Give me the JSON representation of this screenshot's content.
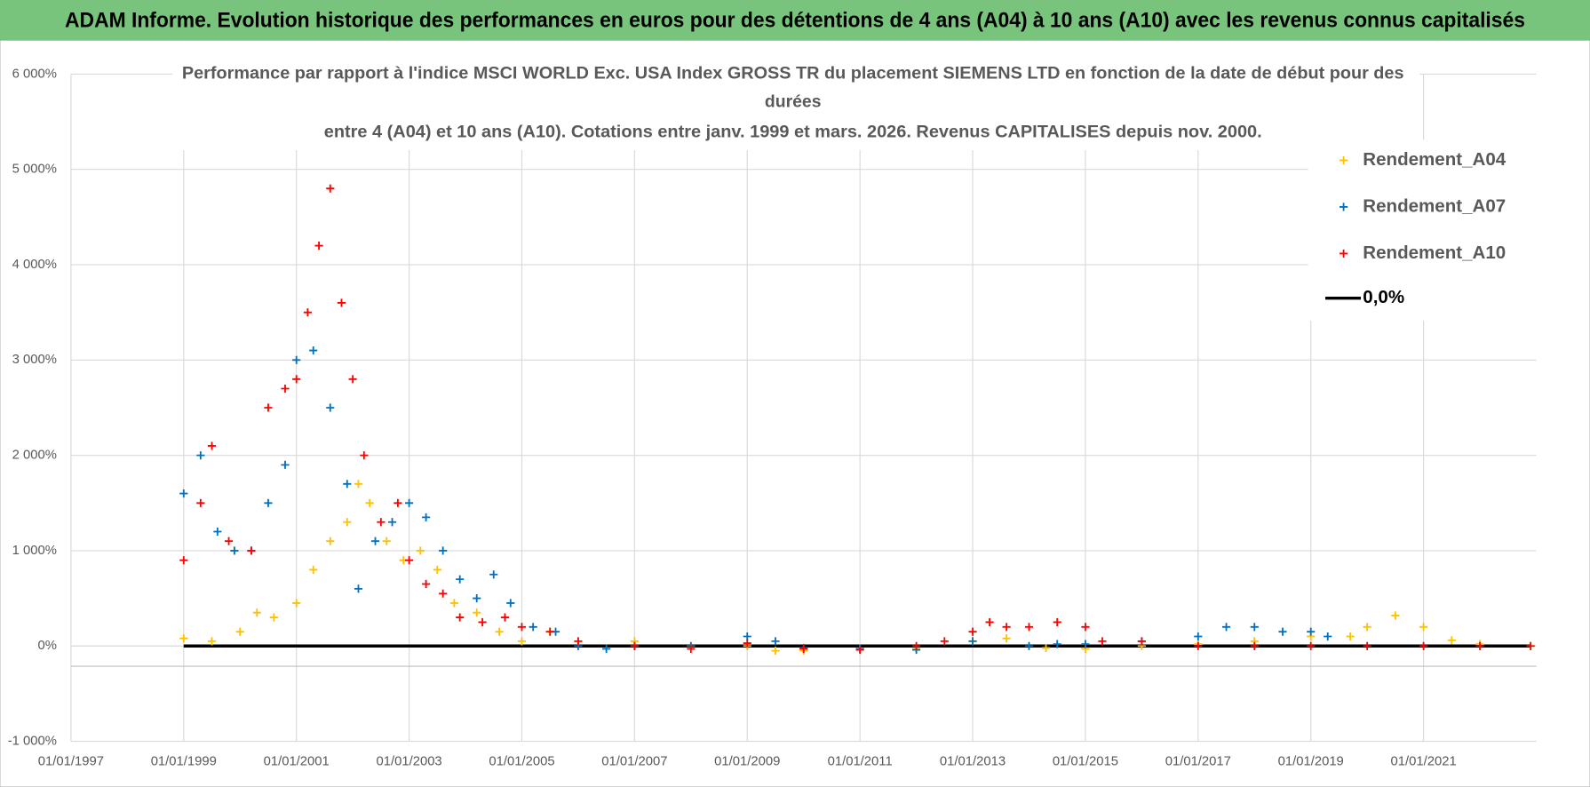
{
  "chart_data": {
    "type": "scatter",
    "header": "ADAM Informe. Evolution historique des performances en euros pour des détentions de 4 ans (A04) à 10 ans (A10) avec les revenus connus capitalisés",
    "title": [
      "Performance par rapport à l'indice MSCI WORLD Exc. USA Index GROSS TR  du placement SIEMENS LTD en fonction de la date de début pour des",
      "durées",
      "entre 4 (A04) et 10 ans (A10).  Cotations entre janv. 1999 et mars. 2026. Revenus CAPITALISES depuis nov. 2000."
    ],
    "xlim": [
      1997,
      2023
    ],
    "xticks": [
      {
        "value": 1997,
        "label": "01/01/1997"
      },
      {
        "value": 1999,
        "label": "01/01/1999"
      },
      {
        "value": 2001,
        "label": "01/01/2001"
      },
      {
        "value": 2003,
        "label": "01/01/2003"
      },
      {
        "value": 2005,
        "label": "01/01/2005"
      },
      {
        "value": 2007,
        "label": "01/01/2007"
      },
      {
        "value": 2009,
        "label": "01/01/2009"
      },
      {
        "value": 2011,
        "label": "01/01/2011"
      },
      {
        "value": 2013,
        "label": "01/01/2013"
      },
      {
        "value": 2015,
        "label": "01/01/2015"
      },
      {
        "value": 2017,
        "label": "01/01/2017"
      },
      {
        "value": 2019,
        "label": "01/01/2019"
      },
      {
        "value": 2021,
        "label": "01/01/2021"
      }
    ],
    "ylim": [
      -1000,
      6000
    ],
    "yticks": [
      {
        "value": -1000,
        "label": "-1 000%"
      },
      {
        "value": 0,
        "label": "0%"
      },
      {
        "value": 1000,
        "label": "1 000%"
      },
      {
        "value": 2000,
        "label": "2 000%"
      },
      {
        "value": 3000,
        "label": "3 000%"
      },
      {
        "value": 4000,
        "label": "4 000%"
      },
      {
        "value": 5000,
        "label": "5 000%"
      },
      {
        "value": 6000,
        "label": "6 000%"
      }
    ],
    "grid": true,
    "legend": "top-right",
    "series": [
      {
        "name": "Rendement_A04",
        "color": "#ffc000",
        "x": [
          1999.0,
          1999.5,
          2000.0,
          2000.3,
          2000.6,
          2001.0,
          2001.3,
          2001.6,
          2001.9,
          2002.1,
          2002.3,
          2002.6,
          2002.9,
          2003.2,
          2003.5,
          2003.8,
          2004.2,
          2004.6,
          2005.0,
          2005.5,
          2006.0,
          2007.0,
          2008.0,
          2009.0,
          2009.5,
          2010.0,
          2011.0,
          2012.0,
          2013.0,
          2013.6,
          2014.3,
          2015.0,
          2016.0,
          2017.0,
          2018.0,
          2019.0,
          2019.7,
          2020.0,
          2020.5,
          2021.0,
          2021.5,
          2022.0,
          2022.9
        ],
        "values": [
          80,
          50,
          150,
          350,
          300,
          450,
          800,
          1100,
          1300,
          1700,
          1500,
          1100,
          900,
          1000,
          800,
          450,
          350,
          150,
          50,
          150,
          50,
          50,
          0,
          0,
          -50,
          -50,
          -30,
          -30,
          50,
          80,
          -20,
          -30,
          0,
          20,
          50,
          100,
          100,
          200,
          320,
          200,
          60,
          20,
          0
        ]
      },
      {
        "name": "Rendement_A07",
        "color": "#0070c0",
        "x": [
          1999.0,
          1999.3,
          1999.6,
          1999.9,
          2000.2,
          2000.5,
          2000.8,
          2001.0,
          2001.3,
          2001.6,
          2001.9,
          2002.1,
          2002.4,
          2002.7,
          2003.0,
          2003.3,
          2003.6,
          2003.9,
          2004.2,
          2004.5,
          2004.8,
          2005.2,
          2005.6,
          2006.0,
          2006.5,
          2007.0,
          2008.0,
          2009.0,
          2009.5,
          2010.0,
          2011.0,
          2012.0,
          2013.0,
          2014.0,
          2014.5,
          2015.0,
          2016.0,
          2017.0,
          2017.5,
          2018.0,
          2018.5,
          2019.0,
          2019.3
        ],
        "values": [
          1600,
          2000,
          1200,
          1000,
          1000,
          1500,
          1900,
          3000,
          3100,
          2500,
          1700,
          600,
          1100,
          1300,
          1500,
          1350,
          1000,
          700,
          500,
          750,
          450,
          200,
          150,
          0,
          -30,
          0,
          0,
          100,
          50,
          -20,
          -30,
          -40,
          50,
          0,
          20,
          20,
          50,
          100,
          200,
          200,
          150,
          150,
          100
        ]
      },
      {
        "name": "Rendement_A10",
        "color": "#ff0000",
        "x": [
          1999.0,
          1999.3,
          1999.5,
          1999.8,
          2000.2,
          2000.5,
          2000.8,
          2001.0,
          2001.2,
          2001.4,
          2001.6,
          2001.8,
          2002.0,
          2002.2,
          2002.5,
          2002.8,
          2003.0,
          2003.3,
          2003.6,
          2003.9,
          2004.3,
          2004.7,
          2005.0,
          2005.5,
          2006.0,
          2007.0,
          2008.0,
          2009.0,
          2010.0,
          2011.0,
          2012.0,
          2012.5,
          2013.0,
          2013.3,
          2013.6,
          2014.0,
          2014.5,
          2015.0,
          2015.3,
          2016.0,
          2017.0,
          2018.0,
          2019.0,
          2020.0,
          2021.0,
          2022.0,
          2022.9
        ],
        "values": [
          900,
          1500,
          2100,
          1100,
          1000,
          2500,
          2700,
          2800,
          3500,
          4200,
          4800,
          3600,
          2800,
          2000,
          1300,
          1500,
          900,
          650,
          550,
          300,
          250,
          300,
          200,
          150,
          50,
          0,
          -30,
          30,
          -30,
          -40,
          0,
          50,
          150,
          250,
          200,
          200,
          250,
          200,
          50,
          50,
          0,
          0,
          0,
          0,
          0,
          0,
          0
        ]
      }
    ],
    "lines": [
      {
        "name": "0,0%",
        "color": "#000000",
        "x": [
          1999.0,
          2022.9
        ],
        "values": [
          0,
          0
        ]
      }
    ]
  }
}
